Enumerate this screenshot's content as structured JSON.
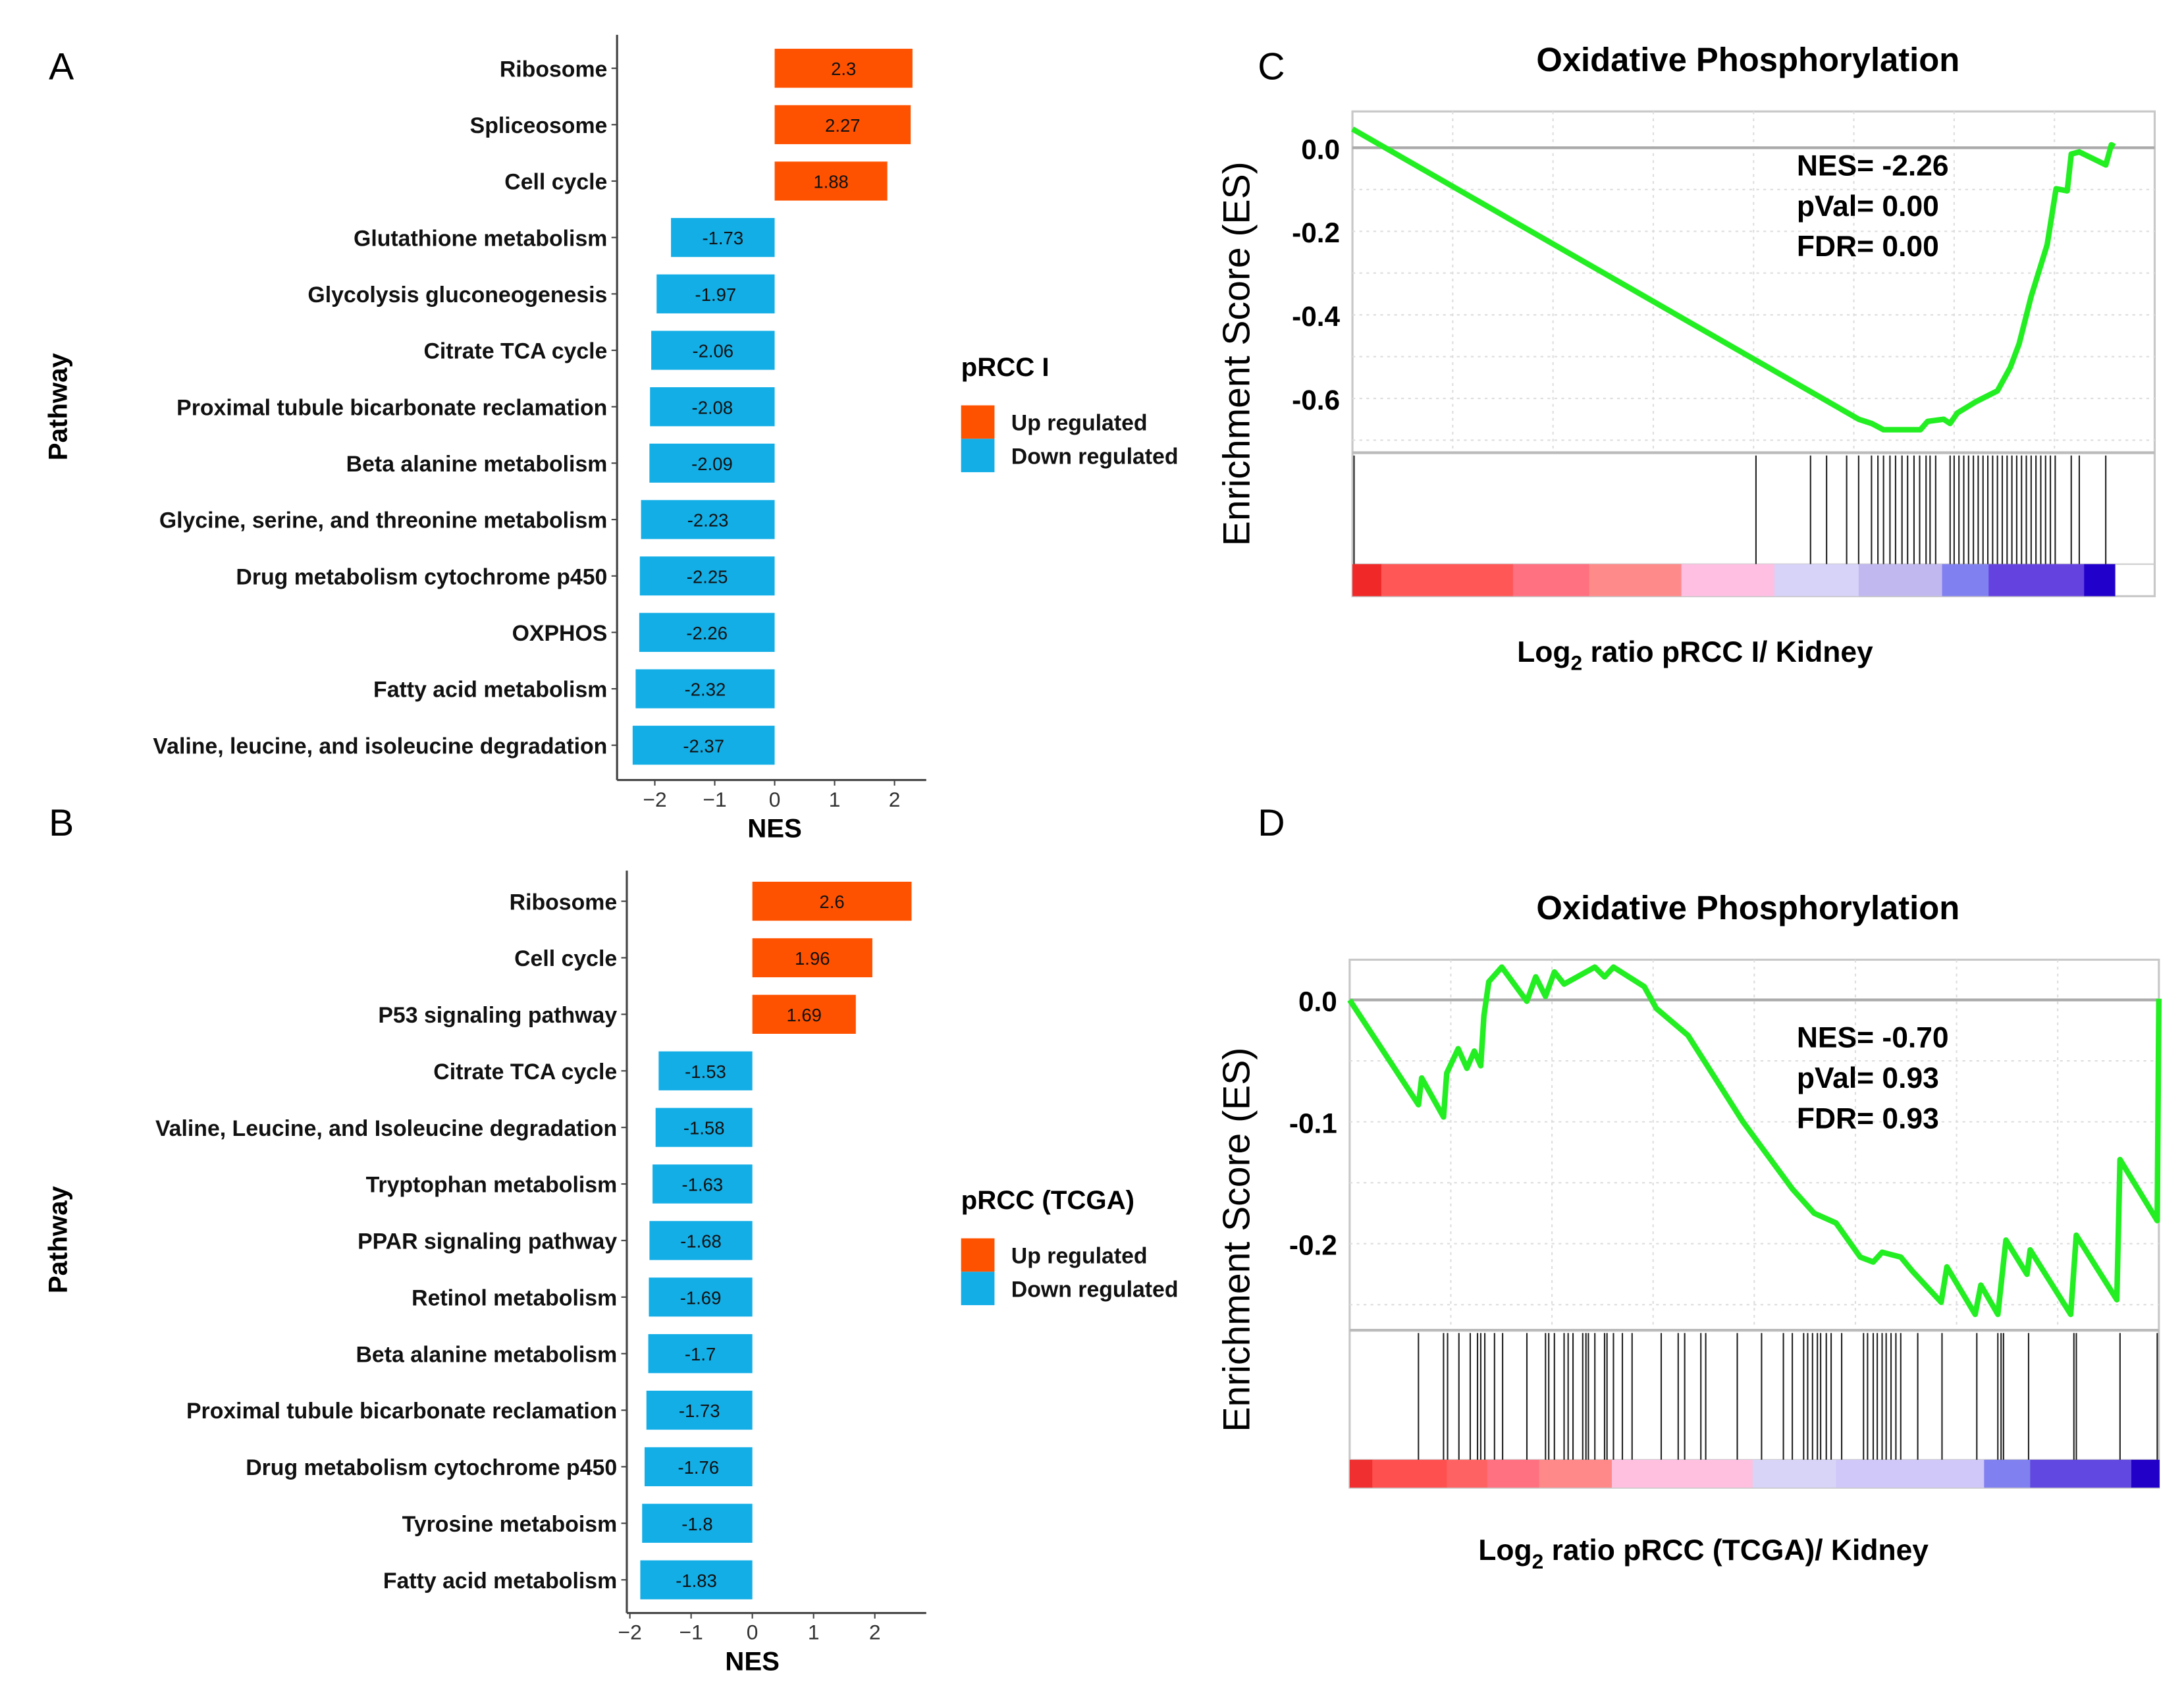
{
  "colors": {
    "up": "#FF5200",
    "down": "#14AEE6",
    "es_curve": "#22EE22"
  },
  "chart_data": [
    {
      "panel_label": "A",
      "type": "bar",
      "orientation": "horizontal",
      "categories": [
        "Ribosome",
        "Spliceosome",
        "Cell cycle",
        "Glutathione metabolism",
        "Glycolysis gluconeogenesis",
        "Citrate TCA cycle",
        "Proximal tubule bicarbonate reclamation",
        "Beta alanine metabolism",
        "Glycine, serine, and threonine metabolism",
        "Drug metabolism cytochrome p450",
        "OXPHOS",
        "Fatty acid metabolism",
        "Valine, leucine, and isoleucine degradation"
      ],
      "values": [
        2.3,
        2.27,
        1.88,
        -1.73,
        -1.97,
        -2.06,
        -2.08,
        -2.09,
        -2.23,
        -2.25,
        -2.26,
        -2.32,
        -2.37
      ],
      "value_labels": [
        "2.3",
        "2.27",
        "1.88",
        "-1.73",
        "-1.97",
        "-2.06",
        "-2.08",
        "-2.09",
        "-2.23",
        "-2.25",
        "-2.26",
        "-2.32",
        "-2.37"
      ],
      "xlabel": "NES",
      "ylabel": "Pathway",
      "xticks": [
        -2,
        -1,
        0,
        1,
        2
      ],
      "xtick_labels": [
        "−2",
        "−1",
        "0",
        "1",
        "2"
      ],
      "xlim": [
        -2.63,
        2.53
      ],
      "legend": {
        "title": "pRCC I",
        "placement": "right",
        "entries": [
          {
            "label": "Up regulated",
            "key": "up"
          },
          {
            "label": "Down regulated",
            "key": "down"
          }
        ]
      }
    },
    {
      "panel_label": "B",
      "type": "bar",
      "orientation": "horizontal",
      "categories": [
        "Ribosome",
        "Cell cycle",
        "P53 signaling pathway",
        "Citrate  TCA cycle",
        "Valine, Leucine, and Isoleucine degradation",
        "Tryptophan metabolism",
        "PPAR signaling pathway",
        "Retinol metabolism",
        "Beta alanine metabolism",
        "Proximal tubule bicarbonate reclamation",
        "Drug metabolism cytochrome p450",
        "Tyrosine metaboism",
        "Fatty acid metabolism"
      ],
      "values": [
        2.6,
        1.96,
        1.69,
        -1.53,
        -1.58,
        -1.63,
        -1.68,
        -1.69,
        -1.7,
        -1.73,
        -1.76,
        -1.8,
        -1.83
      ],
      "value_labels": [
        "2.6",
        "1.96",
        "1.69",
        "-1.53",
        "-1.58",
        "-1.63",
        "-1.68",
        "-1.69",
        "-1.7",
        "-1.73",
        "-1.76",
        "-1.8",
        "-1.83"
      ],
      "xlabel": "NES",
      "ylabel": "Pathway",
      "xticks": [
        -2,
        -1,
        0,
        1,
        2
      ],
      "xtick_labels": [
        "−2",
        "−1",
        "0",
        "1",
        "2"
      ],
      "xlim": [
        -2.05,
        2.84
      ],
      "legend": {
        "title": "pRCC (TCGA)",
        "placement": "right",
        "entries": [
          {
            "label": "Up regulated",
            "key": "up"
          },
          {
            "label": "Down regulated",
            "key": "down"
          }
        ]
      }
    },
    {
      "panel_label": "C",
      "type": "line",
      "title": "Oxidative Phosphorylation",
      "ylabel": "Enrichment Score (ES)",
      "xlabel_prefix": "Log",
      "xlabel_sub": "2",
      "xlabel_suffix": " ratio pRCC I/ Kidney",
      "ylim": [
        -0.73,
        0.087
      ],
      "yticks": [
        0.0,
        -0.2,
        -0.4,
        -0.6
      ],
      "ytick_labels": [
        "0.0",
        "-0.2",
        "-0.4",
        "-0.6"
      ],
      "grid_step": 0.1,
      "stats": [
        "NES= -2.26",
        "pVal= 0.00",
        "FDR= 0.00"
      ],
      "x": [
        0,
        0.631,
        0.647,
        0.662,
        0.708,
        0.717,
        0.737,
        0.745,
        0.754,
        0.777,
        0.804,
        0.82,
        0.831,
        0.846,
        0.866,
        0.877,
        0.891,
        0.896,
        0.906,
        0.939,
        0.946,
        0.95
      ],
      "y": [
        0.045,
        -0.65,
        -0.66,
        -0.675,
        -0.675,
        -0.655,
        -0.65,
        -0.66,
        -0.635,
        -0.608,
        -0.582,
        -0.526,
        -0.469,
        -0.356,
        -0.232,
        -0.098,
        -0.103,
        -0.015,
        -0.01,
        -0.041,
        0.007,
        0.003
      ],
      "hits": [
        0.002,
        0.503,
        0.571,
        0.591,
        0.616,
        0.631,
        0.647,
        0.655,
        0.662,
        0.67,
        0.677,
        0.685,
        0.692,
        0.7,
        0.707,
        0.715,
        0.72,
        0.727,
        0.745,
        0.75,
        0.756,
        0.762,
        0.768,
        0.774,
        0.78,
        0.786,
        0.792,
        0.798,
        0.804,
        0.81,
        0.816,
        0.822,
        0.828,
        0.834,
        0.84,
        0.846,
        0.852,
        0.858,
        0.864,
        0.87,
        0.876,
        0.896,
        0.906,
        0.939
      ],
      "rank_colorbar": [
        {
          "from": 0,
          "to": 0.036,
          "color": "#F02828"
        },
        {
          "from": 0.036,
          "to": 0.2,
          "color": "#FF5656"
        },
        {
          "from": 0.2,
          "to": 0.295,
          "color": "#FF7080"
        },
        {
          "from": 0.295,
          "to": 0.41,
          "color": "#FF8A8A"
        },
        {
          "from": 0.41,
          "to": 0.526,
          "color": "#FFBFE2"
        },
        {
          "from": 0.526,
          "to": 0.631,
          "color": "#D6D2F8"
        },
        {
          "from": 0.631,
          "to": 0.735,
          "color": "#C2B8F0"
        },
        {
          "from": 0.735,
          "to": 0.793,
          "color": "#8080F0"
        },
        {
          "from": 0.793,
          "to": 0.912,
          "color": "#6442E0"
        },
        {
          "from": 0.912,
          "to": 0.95,
          "color": "#2200CC"
        }
      ]
    },
    {
      "panel_label": "D",
      "type": "line",
      "title": "Oxidative Phosphorylation",
      "ylabel": "Enrichment Score (ES)",
      "xlabel_prefix": "Log",
      "xlabel_sub": "2",
      "xlabel_suffix": " ratio pRCC (TCGA)/ Kidney",
      "ylim": [
        -0.271,
        0.033
      ],
      "yticks": [
        0.0,
        -0.1,
        -0.2
      ],
      "ytick_labels": [
        "0.0",
        "-0.1",
        "-0.2"
      ],
      "grid_step": 0.05,
      "stats": [
        "NES= -0.70",
        "pVal= 0.93",
        "FDR= 0.93"
      ],
      "x": [
        0,
        0.085,
        0.089,
        0.116,
        0.12,
        0.134,
        0.145,
        0.154,
        0.162,
        0.166,
        0.172,
        0.188,
        0.219,
        0.23,
        0.242,
        0.253,
        0.265,
        0.303,
        0.315,
        0.326,
        0.364,
        0.379,
        0.418,
        0.486,
        0.547,
        0.574,
        0.601,
        0.631,
        0.647,
        0.658,
        0.681,
        0.696,
        0.731,
        0.738,
        0.773,
        0.78,
        0.801,
        0.811,
        0.837,
        0.841,
        0.891,
        0.898,
        0.948,
        0.952,
        0.998,
        1.0
      ],
      "y": [
        0,
        -0.086,
        -0.064,
        -0.096,
        -0.06,
        -0.04,
        -0.056,
        -0.042,
        -0.054,
        -0.013,
        0.015,
        0.027,
        -0.001,
        0.019,
        0.003,
        0.023,
        0.013,
        0.027,
        0.019,
        0.027,
        0.011,
        -0.007,
        -0.029,
        -0.1,
        -0.155,
        -0.175,
        -0.183,
        -0.211,
        -0.215,
        -0.207,
        -0.211,
        -0.223,
        -0.248,
        -0.219,
        -0.258,
        -0.234,
        -0.258,
        -0.197,
        -0.225,
        -0.205,
        -0.258,
        -0.193,
        -0.246,
        -0.131,
        -0.181,
        0.001
      ],
      "hits": [
        0.085,
        0.116,
        0.121,
        0.135,
        0.149,
        0.158,
        0.162,
        0.167,
        0.179,
        0.189,
        0.219,
        0.242,
        0.246,
        0.253,
        0.265,
        0.27,
        0.276,
        0.288,
        0.292,
        0.295,
        0.303,
        0.315,
        0.318,
        0.326,
        0.337,
        0.349,
        0.385,
        0.406,
        0.414,
        0.434,
        0.44,
        0.479,
        0.509,
        0.536,
        0.547,
        0.561,
        0.566,
        0.572,
        0.578,
        0.582,
        0.589,
        0.595,
        0.608,
        0.635,
        0.64,
        0.647,
        0.652,
        0.658,
        0.663,
        0.669,
        0.675,
        0.681,
        0.702,
        0.732,
        0.775,
        0.801,
        0.805,
        0.808,
        0.839,
        0.895,
        0.898,
        0.952,
        0.998
      ],
      "rank_colorbar": [
        {
          "from": 0,
          "to": 0.028,
          "color": "#F03030"
        },
        {
          "from": 0.028,
          "to": 0.12,
          "color": "#FF5050"
        },
        {
          "from": 0.12,
          "to": 0.17,
          "color": "#FF6262"
        },
        {
          "from": 0.17,
          "to": 0.234,
          "color": "#FF7080"
        },
        {
          "from": 0.234,
          "to": 0.324,
          "color": "#FF8888"
        },
        {
          "from": 0.324,
          "to": 0.498,
          "color": "#FFC0E0"
        },
        {
          "from": 0.498,
          "to": 0.601,
          "color": "#D8D4F8"
        },
        {
          "from": 0.601,
          "to": 0.784,
          "color": "#D0C8F8"
        },
        {
          "from": 0.784,
          "to": 0.841,
          "color": "#8080F0"
        },
        {
          "from": 0.841,
          "to": 0.966,
          "color": "#6048E0"
        },
        {
          "from": 0.966,
          "to": 1.0,
          "color": "#2200C8"
        }
      ]
    }
  ]
}
